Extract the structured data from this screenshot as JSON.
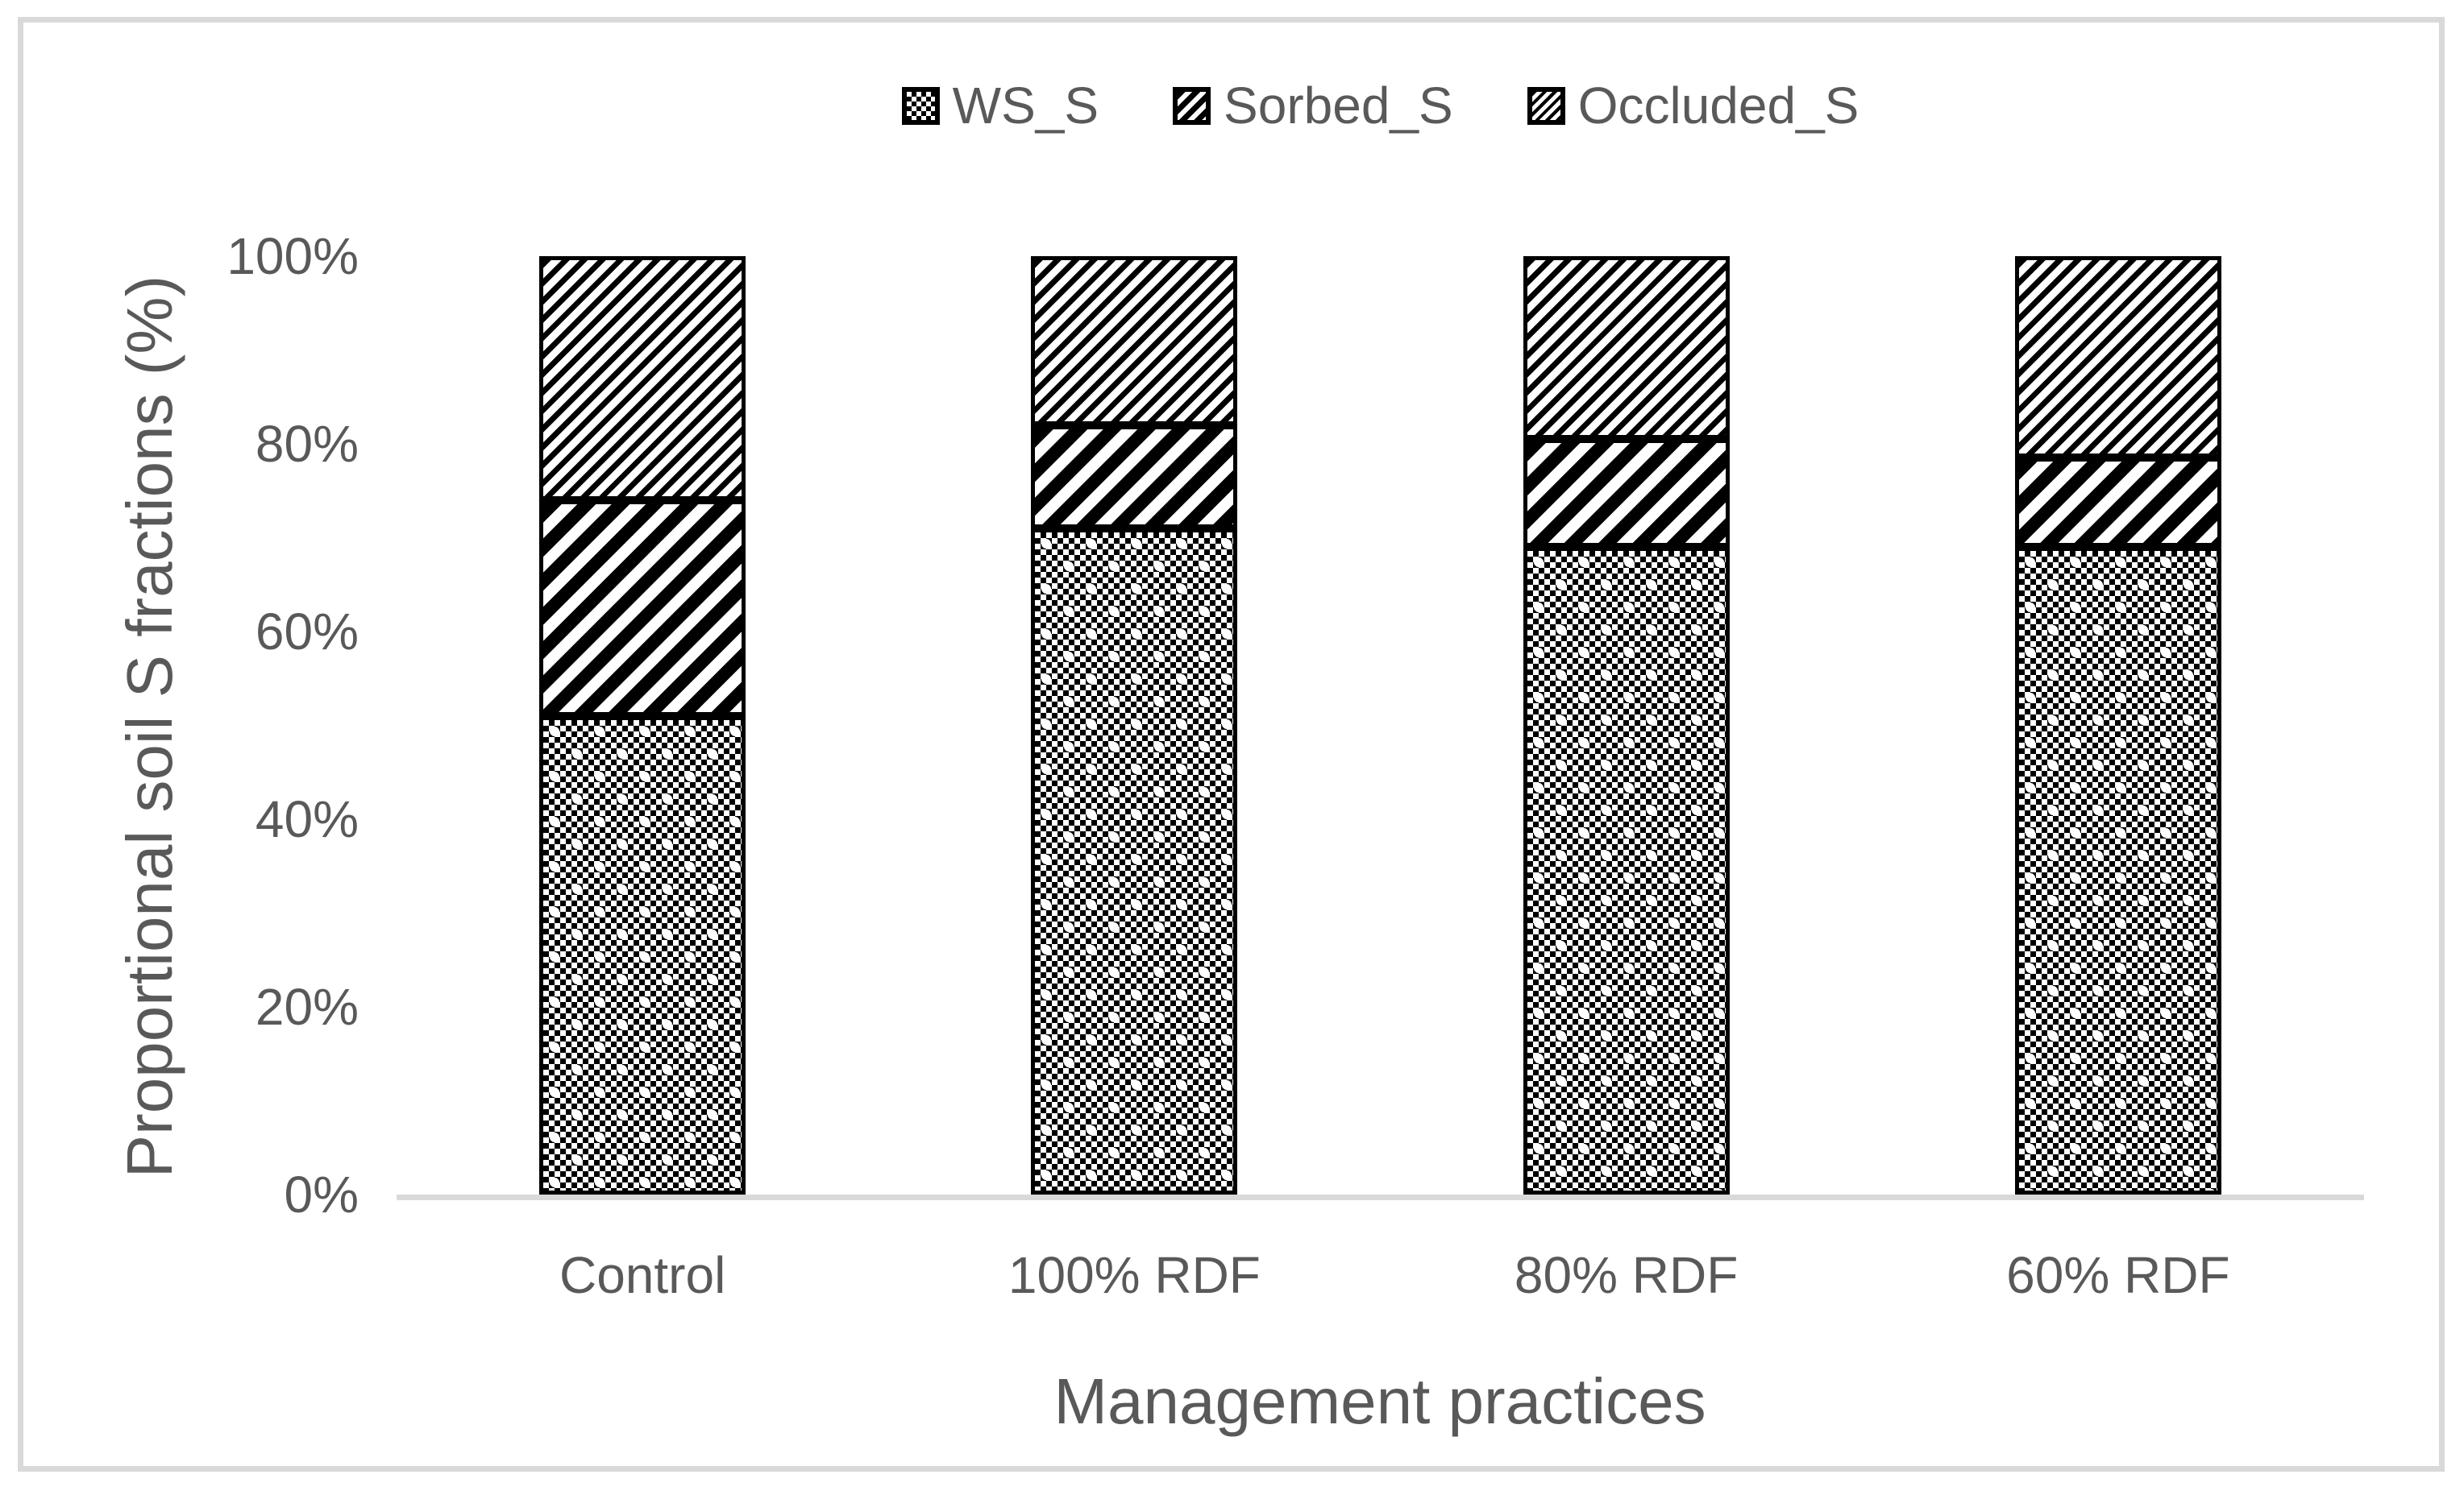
{
  "chart_data": {
    "type": "bar",
    "stacked": true,
    "categories": [
      "Control",
      "100% RDF",
      "80% RDF",
      "60% RDF"
    ],
    "series": [
      {
        "name": "WS_S",
        "pattern": "checker",
        "values": [
          51,
          71,
          69,
          69
        ]
      },
      {
        "name": "Sorbed_S",
        "pattern": "diag-wide",
        "values": [
          23,
          11,
          11.5,
          9.5
        ]
      },
      {
        "name": "Occluded_S",
        "pattern": "diag-light",
        "values": [
          26,
          18,
          19.5,
          21.5
        ]
      }
    ],
    "title": "",
    "xlabel": "Management practices",
    "ylabel": "Proportional soil S fractions (%)",
    "yticks": [
      "0%",
      "20%",
      "40%",
      "60%",
      "80%",
      "100%"
    ],
    "ylim": [
      0,
      100
    ],
    "unit": "percent",
    "grid": false,
    "legend_position": "top",
    "colors": {
      "text": "#595959",
      "axis_line": "#d9d9d9",
      "frame_border": "#d9d9d9",
      "pattern_foreground": "#000000",
      "pattern_background": "#ffffff"
    }
  }
}
